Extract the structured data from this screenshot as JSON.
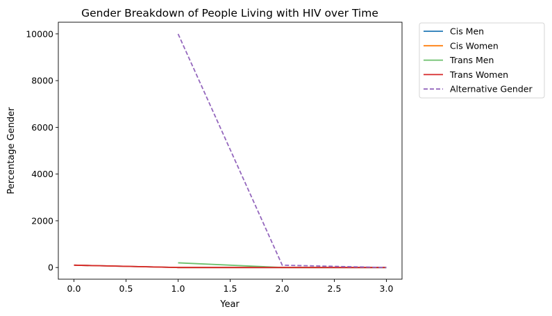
{
  "chart_data": {
    "type": "line",
    "title": "Gender Breakdown of People Living with HIV over Time",
    "xlabel": "Year",
    "ylabel": "Percentage Gender",
    "xlim": [
      -0.15,
      3.15
    ],
    "ylim": [
      -500,
      10500
    ],
    "xticks": [
      0.0,
      0.5,
      1.0,
      1.5,
      2.0,
      2.5,
      3.0
    ],
    "xtick_labels": [
      "0.0",
      "0.5",
      "1.0",
      "1.5",
      "2.0",
      "2.5",
      "3.0"
    ],
    "yticks": [
      0,
      2000,
      4000,
      6000,
      8000,
      10000
    ],
    "ytick_labels": [
      "0",
      "2000",
      "4000",
      "6000",
      "8000",
      "10000"
    ],
    "grid": false,
    "legend_placement": "outside-top-right",
    "series": [
      {
        "name": "Cis Men",
        "color": "#1f77b4",
        "dash": "solid",
        "x": [
          0,
          1,
          2,
          3
        ],
        "y": [
          100,
          0,
          0,
          0
        ]
      },
      {
        "name": "Cis Women",
        "color": "#ff7f0e",
        "dash": "solid",
        "x": [
          0,
          1,
          2,
          3
        ],
        "y": [
          100,
          0,
          0,
          0
        ]
      },
      {
        "name": "Trans Men",
        "color": "#6bbf6b",
        "dash": "solid",
        "x": [
          1,
          2,
          3
        ],
        "y": [
          200,
          0,
          0
        ]
      },
      {
        "name": "Trans Women",
        "color": "#d62728",
        "dash": "solid",
        "x": [
          0,
          1,
          2,
          3
        ],
        "y": [
          100,
          0,
          0,
          0
        ]
      },
      {
        "name": "Alternative Gender",
        "color": "#9467bd",
        "dash": "dashed",
        "x": [
          1,
          2,
          3
        ],
        "y": [
          10000,
          100,
          0
        ]
      }
    ]
  }
}
